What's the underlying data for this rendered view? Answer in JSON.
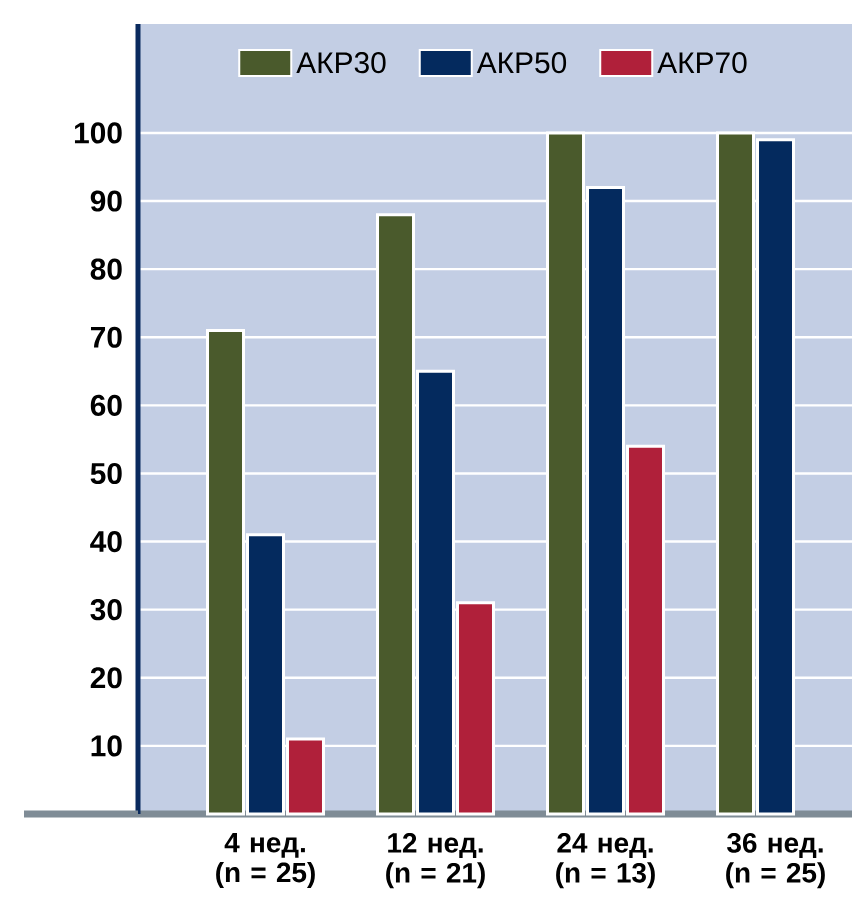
{
  "chart_data": {
    "type": "bar",
    "categories": [
      "4 нед. (n = 25)",
      "12 нед. (n = 21)",
      "24 нед. (n = 13)",
      "36 нед. (n = 25)"
    ],
    "series": [
      {
        "name": "АКР30",
        "color": "#4a5a2c",
        "values": [
          71,
          88,
          100,
          100
        ]
      },
      {
        "name": "АКР50",
        "color": "#042a5e",
        "values": [
          41,
          65,
          92,
          99
        ]
      },
      {
        "name": "АКР70",
        "color": "#b0203a",
        "values": [
          11,
          31,
          54,
          null
        ]
      }
    ],
    "ylim": [
      0,
      116
    ],
    "yticks": [
      10,
      20,
      30,
      40,
      50,
      60,
      70,
      80,
      90,
      100
    ],
    "grid": "y",
    "legend": "top"
  }
}
